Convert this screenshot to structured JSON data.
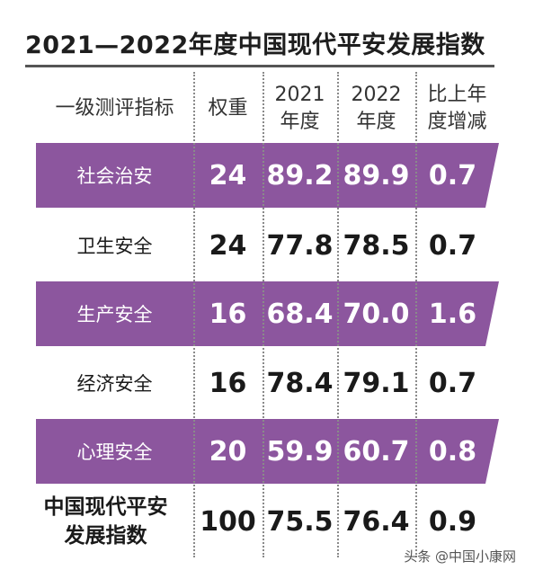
{
  "title": "2021—2022年度中国现代平安发展指数",
  "chart_data": {
    "type": "table",
    "columns": [
      "一级测评指标",
      "权重",
      "2021\n年度",
      "2022\n年度",
      "比上年\n度增减"
    ],
    "rows": [
      {
        "indicator": "社会治安",
        "weight": "24",
        "y2021": "89.2",
        "y2022": "89.9",
        "change": "0.7",
        "highlight": true
      },
      {
        "indicator": "卫生安全",
        "weight": "24",
        "y2021": "77.8",
        "y2022": "78.5",
        "change": "0.7",
        "highlight": false
      },
      {
        "indicator": "生产安全",
        "weight": "16",
        "y2021": "68.4",
        "y2022": "70.0",
        "change": "1.6",
        "highlight": true
      },
      {
        "indicator": "经济安全",
        "weight": "16",
        "y2021": "78.4",
        "y2022": "79.1",
        "change": "0.7",
        "highlight": false
      },
      {
        "indicator": "心理安全",
        "weight": "20",
        "y2021": "59.9",
        "y2022": "60.7",
        "change": "0.8",
        "highlight": true
      }
    ],
    "summary": {
      "indicator": "中国现代平安\n发展指数",
      "weight": "100",
      "y2021": "75.5",
      "y2022": "76.4",
      "change": "0.9"
    }
  },
  "colors": {
    "band": "#8c569e",
    "rule": "#555555"
  },
  "watermark": "头条 @中国小康网"
}
